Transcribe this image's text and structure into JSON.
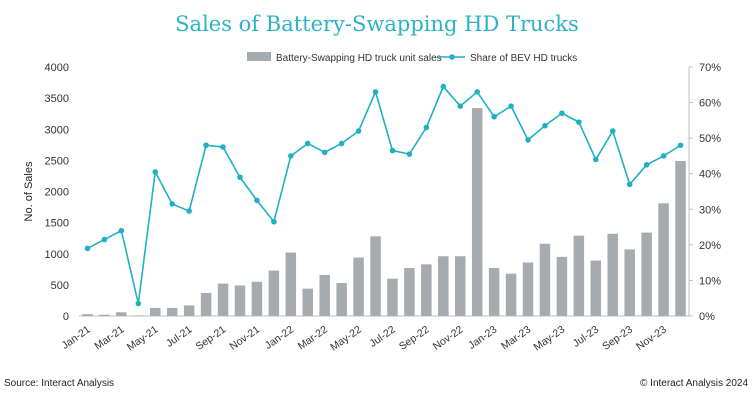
{
  "chart_data": {
    "type": "bar+line",
    "title": "Sales of Battery-Swapping HD Trucks",
    "ylabel": "No. of Sales",
    "y2label": "",
    "ylim": [
      0,
      4000
    ],
    "y2lim": [
      0,
      70
    ],
    "yticks": [
      "0",
      "500",
      "1000",
      "1500",
      "2000",
      "2500",
      "3000",
      "3500",
      "4000"
    ],
    "y2ticks": [
      "0%",
      "10%",
      "20%",
      "30%",
      "40%",
      "50%",
      "60%",
      "70%"
    ],
    "categories": [
      "Jan-21",
      "Feb-21",
      "Mar-21",
      "Apr-21",
      "May-21",
      "Jun-21",
      "Jul-21",
      "Aug-21",
      "Sep-21",
      "Oct-21",
      "Nov-21",
      "Dec-21",
      "Jan-22",
      "Feb-22",
      "Mar-22",
      "Apr-22",
      "May-22",
      "Jun-22",
      "Jul-22",
      "Aug-22",
      "Sep-22",
      "Oct-22",
      "Nov-22",
      "Dec-22",
      "Jan-23",
      "Feb-23",
      "Mar-23",
      "Apr-23",
      "May-23",
      "Jun-23",
      "Jul-23",
      "Aug-23",
      "Sep-23",
      "Oct-23",
      "Nov-23",
      "Dec-23"
    ],
    "xtick_labels": [
      "Jan-21",
      "Mar-21",
      "May-21",
      "Jul-21",
      "Sep-21",
      "Nov-21",
      "Jan-22",
      "Mar-22",
      "May-22",
      "Jul-22",
      "Sep-22",
      "Nov-22",
      "Jan-23",
      "Mar-23",
      "May-23",
      "Jul-23",
      "Sep-23",
      "Nov-23"
    ],
    "series": [
      {
        "name": "Battery-Swapping HD truck unit sales",
        "type": "bar",
        "axis": "left",
        "color": "#a6abaf",
        "values": [
          30,
          20,
          60,
          10,
          130,
          130,
          170,
          370,
          520,
          490,
          550,
          730,
          1020,
          440,
          660,
          530,
          940,
          1280,
          600,
          770,
          830,
          960,
          960,
          3340,
          770,
          680,
          860,
          1160,
          950,
          1290,
          890,
          1320,
          1070,
          1340,
          1810,
          2490
        ]
      },
      {
        "name": "Share of BEV HD trucks",
        "type": "line",
        "axis": "right",
        "color": "#1fb1c2",
        "values": [
          19,
          21.5,
          24,
          3.5,
          40.5,
          31.5,
          29.5,
          48,
          47.5,
          39,
          32.5,
          26.5,
          45,
          48.5,
          46,
          48.5,
          52,
          63,
          46.5,
          45.5,
          53,
          64.5,
          59,
          63,
          56,
          59,
          49.5,
          53.5,
          57,
          54.5,
          44,
          52,
          37,
          42.5,
          45,
          48
        ]
      }
    ],
    "legend_position": "top",
    "grid": false
  },
  "footer": {
    "source": "Source: Interact Analysis",
    "copyright": "© Interact Analysis 2024"
  }
}
